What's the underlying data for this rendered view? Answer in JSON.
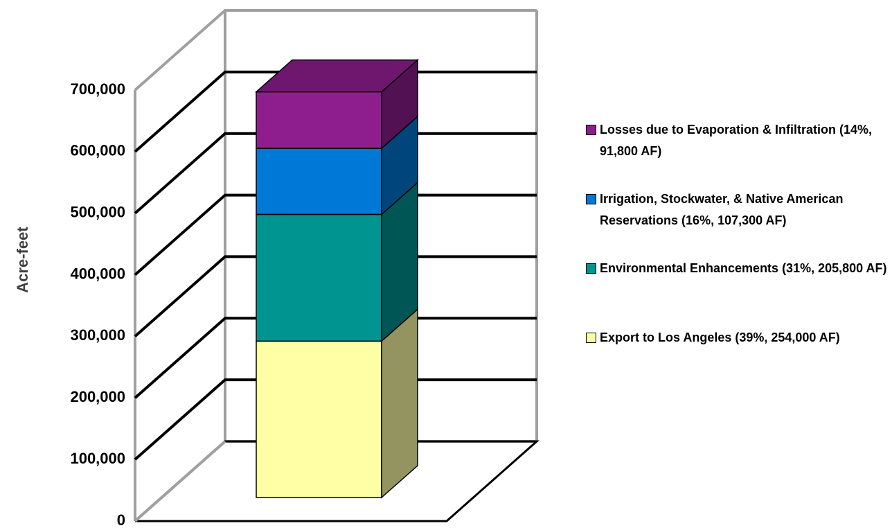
{
  "chart_data": {
    "type": "bar3d_stacked",
    "y_label": "Acre-feet",
    "categories": [
      null
    ],
    "series": [
      {
        "name": "Export to Los Angeles (39%, 254,000 AF)",
        "color": "#ffffa6",
        "values": [
          254000
        ]
      },
      {
        "name": "Environmental Enhancements (31%, 205,800 AF)",
        "color": "#009490",
        "values": [
          205800
        ]
      },
      {
        "name": "Irrigation, Stockwater, & Native American Reservations (16%, 107,300 AF)",
        "color": "#0078d8",
        "values": [
          107300
        ]
      },
      {
        "name": "Losses due to Evaporation & Infiltration (14%, 91,800 AF)",
        "color": "#8e1e8e",
        "values": [
          91800
        ]
      }
    ],
    "ylim": [
      0,
      700000
    ],
    "yticks": [
      0,
      {
        "value": 100000,
        "label": "100,000"
      },
      {
        "value": 200000,
        "label": "200,000"
      },
      {
        "value": 300000,
        "label": "300,000"
      },
      {
        "value": 400000,
        "label": "400,000"
      },
      {
        "value": 500000,
        "label": "500,000"
      },
      {
        "value": 600000,
        "label": "600,000"
      },
      {
        "value": 700000,
        "label": "700,000"
      }
    ],
    "grid": true,
    "legend": "right"
  }
}
